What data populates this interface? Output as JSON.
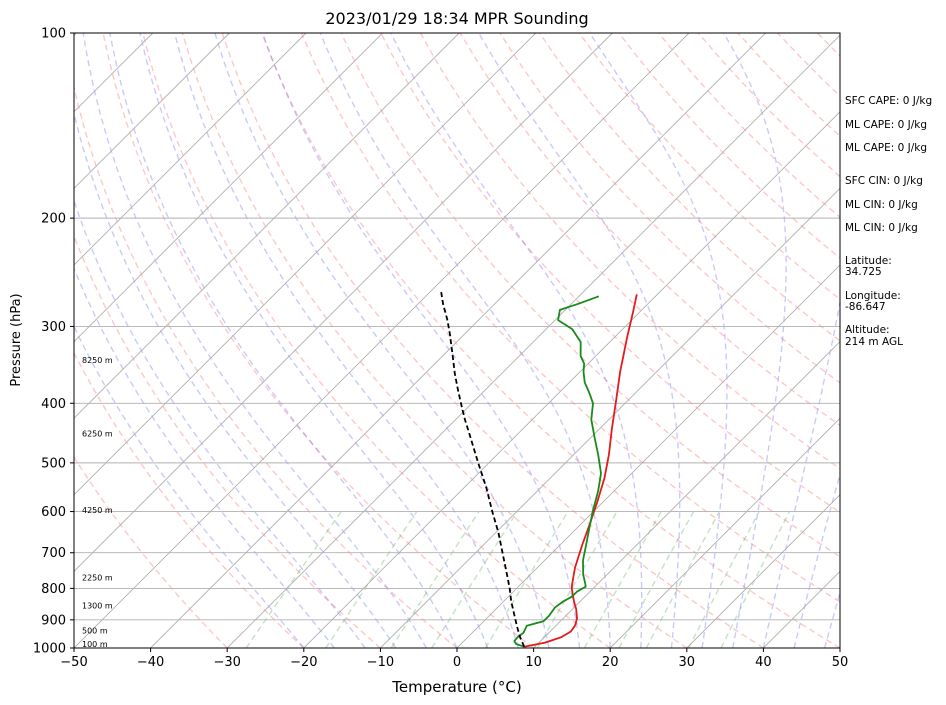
{
  "chart_data": {
    "type": "line",
    "title": "2023/01/29 18:34 MPR Sounding",
    "xlabel": "Temperature (°C)",
    "ylabel": "Pressure (hPa)",
    "xlim": [
      -50,
      50
    ],
    "ylim": [
      1000,
      100
    ],
    "yscale": "log",
    "x_ticks": [
      -50,
      -40,
      -30,
      -20,
      -10,
      0,
      10,
      20,
      30,
      40,
      50
    ],
    "x_tick_labels": [
      "−50",
      "−40",
      "−30",
      "−20",
      "−10",
      "0",
      "10",
      "20",
      "30",
      "40",
      "50"
    ],
    "y_ticks": [
      1000,
      900,
      800,
      700,
      600,
      500,
      400,
      300,
      200,
      100
    ],
    "y_tick_labels": [
      "1000",
      "900",
      "800",
      "700",
      "600",
      "500",
      "400",
      "300",
      "200",
      "100"
    ],
    "grid_pressure": [
      900,
      800,
      700,
      600,
      500,
      400,
      300,
      200
    ],
    "height_labels": [
      {
        "p": 1000,
        "text": "100 m"
      },
      {
        "p": 950,
        "text": "500 m"
      },
      {
        "p": 865,
        "text": "1300 m"
      },
      {
        "p": 780,
        "text": "2250 m"
      },
      {
        "p": 605,
        "text": "4250 m"
      },
      {
        "p": 455,
        "text": "6250 m"
      },
      {
        "p": 345,
        "text": "8250 m"
      }
    ],
    "series": [
      {
        "kind": "temperature",
        "color": "#e41a1c",
        "points": [
          [
            8.6,
            995
          ],
          [
            10.8,
            980
          ],
          [
            12.2,
            960
          ],
          [
            12.7,
            940
          ],
          [
            12.5,
            920
          ],
          [
            11.8,
            895
          ],
          [
            10.5,
            865
          ],
          [
            9.2,
            840
          ],
          [
            8.2,
            820
          ],
          [
            7.2,
            800
          ],
          [
            6.8,
            790
          ],
          [
            4.9,
            740
          ],
          [
            2.9,
            680
          ],
          [
            1.2,
            630
          ],
          [
            -0.7,
            580
          ],
          [
            -2.9,
            530
          ],
          [
            -5.4,
            485
          ],
          [
            -8.4,
            440
          ],
          [
            -11.6,
            395
          ],
          [
            -14.8,
            355
          ],
          [
            -18.4,
            312
          ],
          [
            -20.8,
            285
          ],
          [
            -22.7,
            266
          ]
        ]
      },
      {
        "kind": "dewpoint",
        "color": "#1a8a1a",
        "points": [
          [
            8.6,
            995
          ],
          [
            7.2,
            985
          ],
          [
            6.6,
            975
          ],
          [
            6.5,
            960
          ],
          [
            6.7,
            945
          ],
          [
            6.2,
            920
          ],
          [
            7.8,
            905
          ],
          [
            7.8,
            885
          ],
          [
            7.5,
            860
          ],
          [
            7.8,
            840
          ],
          [
            8.3,
            825
          ],
          [
            8.3,
            810
          ],
          [
            8.8,
            795
          ],
          [
            8.3,
            785
          ],
          [
            6.9,
            760
          ],
          [
            5.0,
            720
          ],
          [
            3.4,
            680
          ],
          [
            1.7,
            640
          ],
          [
            -0.1,
            600
          ],
          [
            -2.1,
            555
          ],
          [
            -4.0,
            520
          ],
          [
            -6.8,
            485
          ],
          [
            -9.5,
            455
          ],
          [
            -12.3,
            425
          ],
          [
            -14.2,
            400
          ],
          [
            -16.0,
            385
          ],
          [
            -18.0,
            370
          ],
          [
            -19.6,
            355
          ],
          [
            -20.5,
            345
          ],
          [
            -22.0,
            335
          ],
          [
            -23.8,
            318
          ],
          [
            -26.6,
            303
          ],
          [
            -29.6,
            293
          ],
          [
            -30.7,
            282
          ],
          [
            -29.2,
            276
          ],
          [
            -27.4,
            268
          ]
        ]
      },
      {
        "kind": "parcel",
        "color": "#000000",
        "points": [
          [
            8.6,
            995
          ],
          [
            6.8,
            960
          ],
          [
            4.9,
            920
          ],
          [
            3.0,
            880
          ],
          [
            1.0,
            840
          ],
          [
            -0.9,
            800
          ],
          [
            -3.6,
            750
          ],
          [
            -6.5,
            700
          ],
          [
            -9.6,
            650
          ],
          [
            -13.2,
            600
          ],
          [
            -17.0,
            550
          ],
          [
            -21.4,
            500
          ],
          [
            -24.7,
            465
          ],
          [
            -26.5,
            447
          ],
          [
            -28.8,
            425
          ],
          [
            -30.9,
            405
          ],
          [
            -33.4,
            382
          ],
          [
            -36.1,
            358
          ],
          [
            -38.7,
            335
          ],
          [
            -42.0,
            308
          ],
          [
            -44.2,
            292
          ],
          [
            -46.7,
            276
          ],
          [
            -48.8,
            262
          ]
        ]
      }
    ],
    "indices": {
      "sfc_cape": "SFC CAPE: 0 J/kg",
      "ml_cape_1": "ML CAPE: 0 J/kg",
      "ml_cape_2": "ML CAPE: 0 J/kg",
      "sfc_cin": "SFC CIN: 0 J/kg",
      "ml_cin_1": "ML CIN: 0 J/kg",
      "ml_cin_2": "ML CIN: 0 J/kg",
      "latitude_label": "Latitude:",
      "latitude_value": "34.725",
      "longitude_label": "Longitude:",
      "longitude_value": "-86.647",
      "altitude_label": "Altitude:",
      "altitude_value": "214 m AGL"
    }
  }
}
